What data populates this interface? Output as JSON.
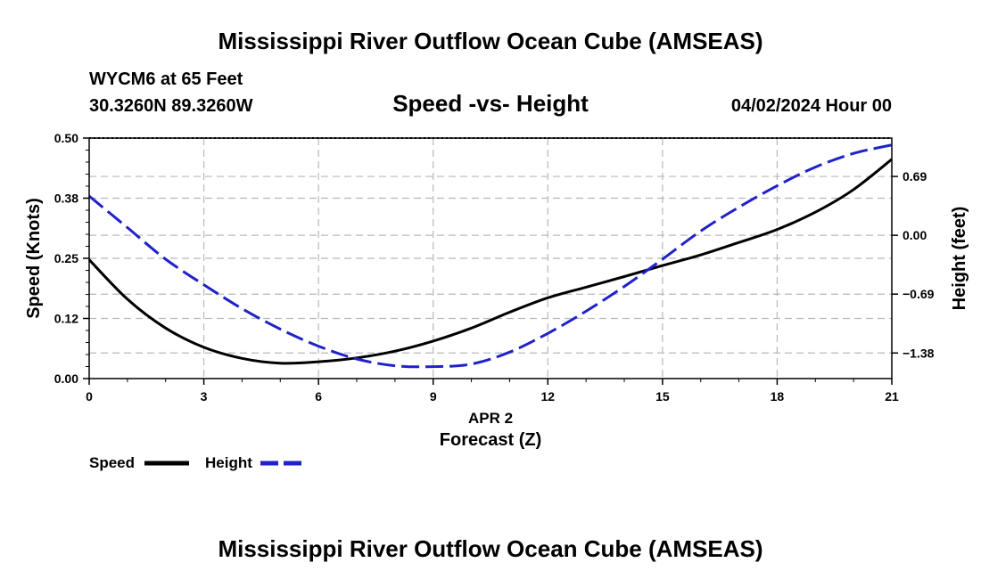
{
  "page": {
    "title": "Mississippi River Outflow Ocean Cube (AMSEAS)",
    "footer_title": "Mississippi River Outflow Ocean Cube (AMSEAS)",
    "station": "WYCM6 at 65 Feet",
    "coords": "30.3260N  89.3260W",
    "subtitle": "Speed -vs- Height",
    "datetime": "04/02/2024 Hour 00"
  },
  "chart_data": {
    "type": "line",
    "xlabel": "Forecast (Z)",
    "xsublabel": "APR 2",
    "ylabel": "Speed (Knots)",
    "y2label": "Height (feet)",
    "xlim": [
      0,
      21
    ],
    "ylim": [
      0,
      0.5
    ],
    "y2lim": [
      -1.68,
      1.14
    ],
    "xticks": [
      0,
      3,
      6,
      9,
      12,
      15,
      18,
      21
    ],
    "xtick_labels": [
      "0",
      "3",
      "6",
      "9",
      "12",
      "15",
      "18",
      "21"
    ],
    "yticks": [
      0,
      0.125,
      0.25,
      0.375,
      0.5
    ],
    "ytick_labels": [
      "0.00",
      "0.12",
      "0.25",
      "0.38",
      "0.50"
    ],
    "y2ticks": [
      -1.38,
      -0.69,
      0,
      0.69
    ],
    "y2tick_labels": [
      "−1.38",
      "−0.69",
      "0.00",
      "0.69"
    ],
    "grid": true,
    "legend_position": "bottom-left",
    "series": [
      {
        "name": "Speed",
        "axis": "left",
        "color": "#000000",
        "dash": "solid",
        "x": [
          0,
          1,
          2,
          3,
          4,
          5,
          6,
          7,
          8,
          9,
          10,
          11,
          12,
          13,
          14,
          15,
          16,
          17,
          18,
          19,
          20,
          21
        ],
        "values": [
          0.247,
          0.165,
          0.105,
          0.065,
          0.042,
          0.032,
          0.035,
          0.043,
          0.057,
          0.078,
          0.105,
          0.138,
          0.168,
          0.19,
          0.212,
          0.235,
          0.257,
          0.283,
          0.31,
          0.346,
          0.393,
          0.456
        ]
      },
      {
        "name": "Height",
        "axis": "right",
        "color": "#1f22c8",
        "dash": "dashed",
        "x": [
          0,
          1,
          2,
          3,
          4,
          5,
          6,
          7,
          8,
          9,
          10,
          11,
          12,
          13,
          14,
          15,
          16,
          17,
          18,
          19,
          20,
          21
        ],
        "values": [
          0.46,
          0.09,
          -0.28,
          -0.58,
          -0.86,
          -1.1,
          -1.3,
          -1.45,
          -1.53,
          -1.54,
          -1.51,
          -1.37,
          -1.15,
          -0.89,
          -0.6,
          -0.28,
          0.05,
          0.33,
          0.58,
          0.8,
          0.96,
          1.06
        ]
      }
    ]
  }
}
